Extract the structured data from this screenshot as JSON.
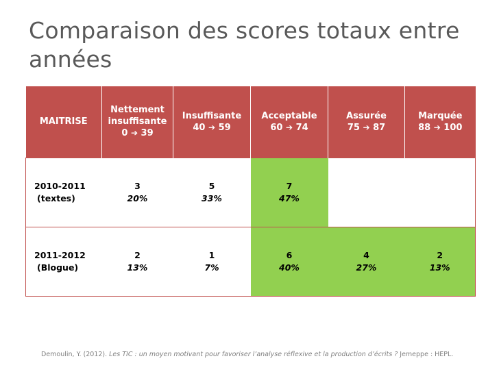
{
  "title": "Comparaison des scores totaux entre années",
  "colors": {
    "header": "#c0504d",
    "highlight": "#92d050"
  },
  "header": {
    "col0": "MAITRISE",
    "cols": [
      {
        "line1": "Nettement",
        "line2": "insuffisante",
        "range_from": "0",
        "range_to": "39"
      },
      {
        "line1": "Insuffisante",
        "line2": "",
        "range_from": "40",
        "range_to": "59"
      },
      {
        "line1": "Acceptable",
        "line2": "",
        "range_from": "60",
        "range_to": "74"
      },
      {
        "line1": "Assurée",
        "line2": "",
        "range_from": "75",
        "range_to": "87"
      },
      {
        "line1": "Marquée",
        "line2": "",
        "range_from": "88",
        "range_to": "100"
      }
    ],
    "arrow_icon": "right-arrow-icon"
  },
  "rows": [
    {
      "year": "2010-2011",
      "label": "(textes)",
      "cells": [
        {
          "count": "3",
          "pct": "20%"
        },
        {
          "count": "5",
          "pct": "33%"
        },
        {
          "count": "7",
          "pct": "47%"
        },
        {
          "count": "",
          "pct": ""
        },
        {
          "count": "",
          "pct": ""
        }
      ]
    },
    {
      "year": "2011-2012",
      "label": "(Blogue)",
      "cells": [
        {
          "count": "2",
          "pct": "13%"
        },
        {
          "count": "1",
          "pct": "7%"
        },
        {
          "count": "6",
          "pct": "40%"
        },
        {
          "count": "4",
          "pct": "27%"
        },
        {
          "count": "2",
          "pct": "13%"
        }
      ]
    }
  ],
  "footer": {
    "prefix": "Demoulin, Y. (2012). ",
    "italic": "Les TIC : un moyen motivant pour favoriser l’analyse réflexive et la production d’écrits ?",
    "suffix": " Jemeppe : HEPL."
  }
}
